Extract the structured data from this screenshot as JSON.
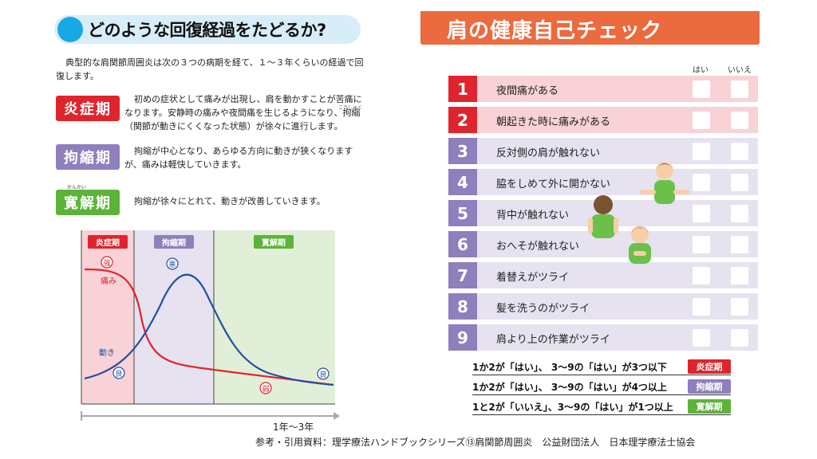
{
  "left": {
    "title": "どのような回復経過をたどるか?",
    "intro": "典型的な肩関節周囲炎は次の３つの病期を経て、１～３年くらいの経過で回復します。",
    "phases": [
      {
        "label": "炎症期",
        "color": "#e0242d",
        "desc": "初めの症状として痛みが出現し、肩を動かすことが苦痛になります。安静時の痛みや夜間痛を生じるようになり、拘縮（関節が動きにくくなった状態）が徐々に進行します。"
      },
      {
        "label": "拘縮期",
        "color": "#8f7fbd",
        "desc": "拘縮が中心となり、あらゆる方向に動きが狭くなりますが、痛みは軽快していきます。"
      },
      {
        "label": "寛解期",
        "color": "#5cb33a",
        "desc": "拘縮が徐々にとれて、動きが改善していきます。"
      }
    ],
    "ruby": {
      "kousyuku": "こうしゅく",
      "kankai": "かんかい"
    },
    "chart": {
      "phase_labels": [
        "炎症期",
        "拘縮期",
        "寛解期"
      ],
      "pain_label": "痛み",
      "motion_label": "動き",
      "marks": {
        "strong": "強",
        "bad": "悪",
        "good": "良",
        "weak": "弱"
      },
      "timeline": "1年〜3年"
    }
  },
  "right": {
    "title": "肩の健康自己チェック",
    "col_yes": "はい",
    "col_no": "いいえ",
    "items": [
      {
        "num": "1",
        "text": "夜間痛がある",
        "group": "red"
      },
      {
        "num": "2",
        "text": "朝起きた時に痛みがある",
        "group": "red"
      },
      {
        "num": "3",
        "text": "反対側の肩が触れない",
        "group": "purple"
      },
      {
        "num": "4",
        "text": "脇をしめて外に開かない",
        "group": "purple"
      },
      {
        "num": "5",
        "text": "背中が触れない",
        "group": "purple"
      },
      {
        "num": "6",
        "text": "おへそが触れない",
        "group": "purple"
      },
      {
        "num": "7",
        "text": "着替えがツライ",
        "group": "purple"
      },
      {
        "num": "8",
        "text": "髪を洗うのがツライ",
        "group": "purple"
      },
      {
        "num": "9",
        "text": "肩より上の作業がツライ",
        "group": "purple"
      }
    ],
    "legend": [
      {
        "text": "1か2が「はい」、 3〜9の「はい」が3つ以下",
        "badge": "炎症期",
        "color": "#e0242d"
      },
      {
        "text": "1か2が「はい」、 3〜9の「はい」が4つ以上",
        "badge": "拘縮期",
        "color": "#8f7fbd"
      },
      {
        "text": "1と2が「いいえ」、3〜9の「はい」が1つ以上",
        "badge": "寛解期",
        "color": "#5cb33a"
      }
    ]
  },
  "footer": "参考・引用資料：理学療法ハンドブックシリーズ⑬肩関節周囲炎　公益財団法人　日本理学療法士協会"
}
